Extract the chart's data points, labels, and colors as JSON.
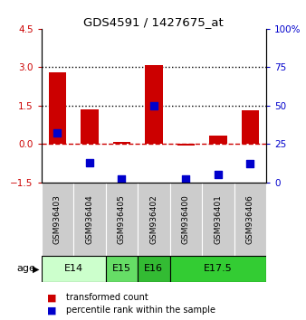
{
  "title": "GDS4591 / 1427675_at",
  "samples": [
    "GSM936403",
    "GSM936404",
    "GSM936405",
    "GSM936402",
    "GSM936400",
    "GSM936401",
    "GSM936406"
  ],
  "red_values": [
    2.8,
    1.35,
    0.08,
    3.07,
    -0.07,
    0.33,
    1.3
  ],
  "blue_pct": [
    32,
    13,
    2,
    50,
    2,
    5,
    12
  ],
  "ylim_left": [
    -1.5,
    4.5
  ],
  "ylim_right": [
    0,
    100
  ],
  "yticks_left": [
    -1.5,
    0,
    1.5,
    3,
    4.5
  ],
  "yticks_right": [
    0,
    25,
    50,
    75,
    100
  ],
  "dotted_lines": [
    1.5,
    3.0
  ],
  "dashed_zero_color": "#cc0000",
  "bar_color": "#cc0000",
  "dot_color": "#0000cc",
  "sample_box_color": "#cccccc",
  "age_groups": [
    {
      "label": "E14",
      "start": 0,
      "end": 2,
      "color": "#ccffcc"
    },
    {
      "label": "E15",
      "start": 2,
      "end": 3,
      "color": "#66dd66"
    },
    {
      "label": "E16",
      "start": 3,
      "end": 4,
      "color": "#33bb33"
    },
    {
      "label": "E17.5",
      "start": 4,
      "end": 7,
      "color": "#33cc33"
    }
  ],
  "legend_red": "transformed count",
  "legend_blue": "percentile rank within the sample",
  "left_tick_color": "#cc0000",
  "right_tick_color": "#0000cc",
  "bar_width": 0.55,
  "dot_size": 36
}
